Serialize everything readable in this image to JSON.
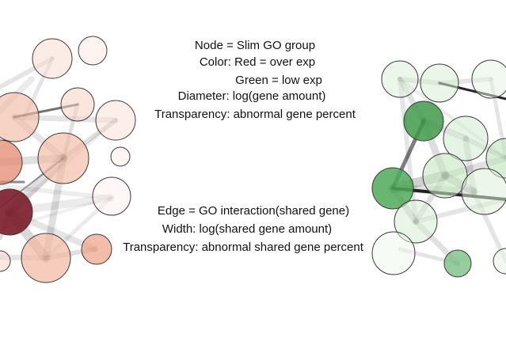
{
  "legend_nodes": {
    "line1": "Node = Slim GO group",
    "line2": "Color: Red = over exp",
    "line3": "Green = low exp",
    "line4": "Diameter: log(gene amount)",
    "line5": "Transparency: abnormal gene percent"
  },
  "legend_edges": {
    "line1": "Edge = GO interaction(shared gene)",
    "line2": "Width: log(shared gene amount)",
    "line3": "Transparency: abnormal shared gene percent"
  },
  "colors": {
    "over_exp": "#8b2a3a",
    "low_exp": "#3f9a4a",
    "edge": "#000000",
    "node_stroke": "#3a3a3a"
  }
}
